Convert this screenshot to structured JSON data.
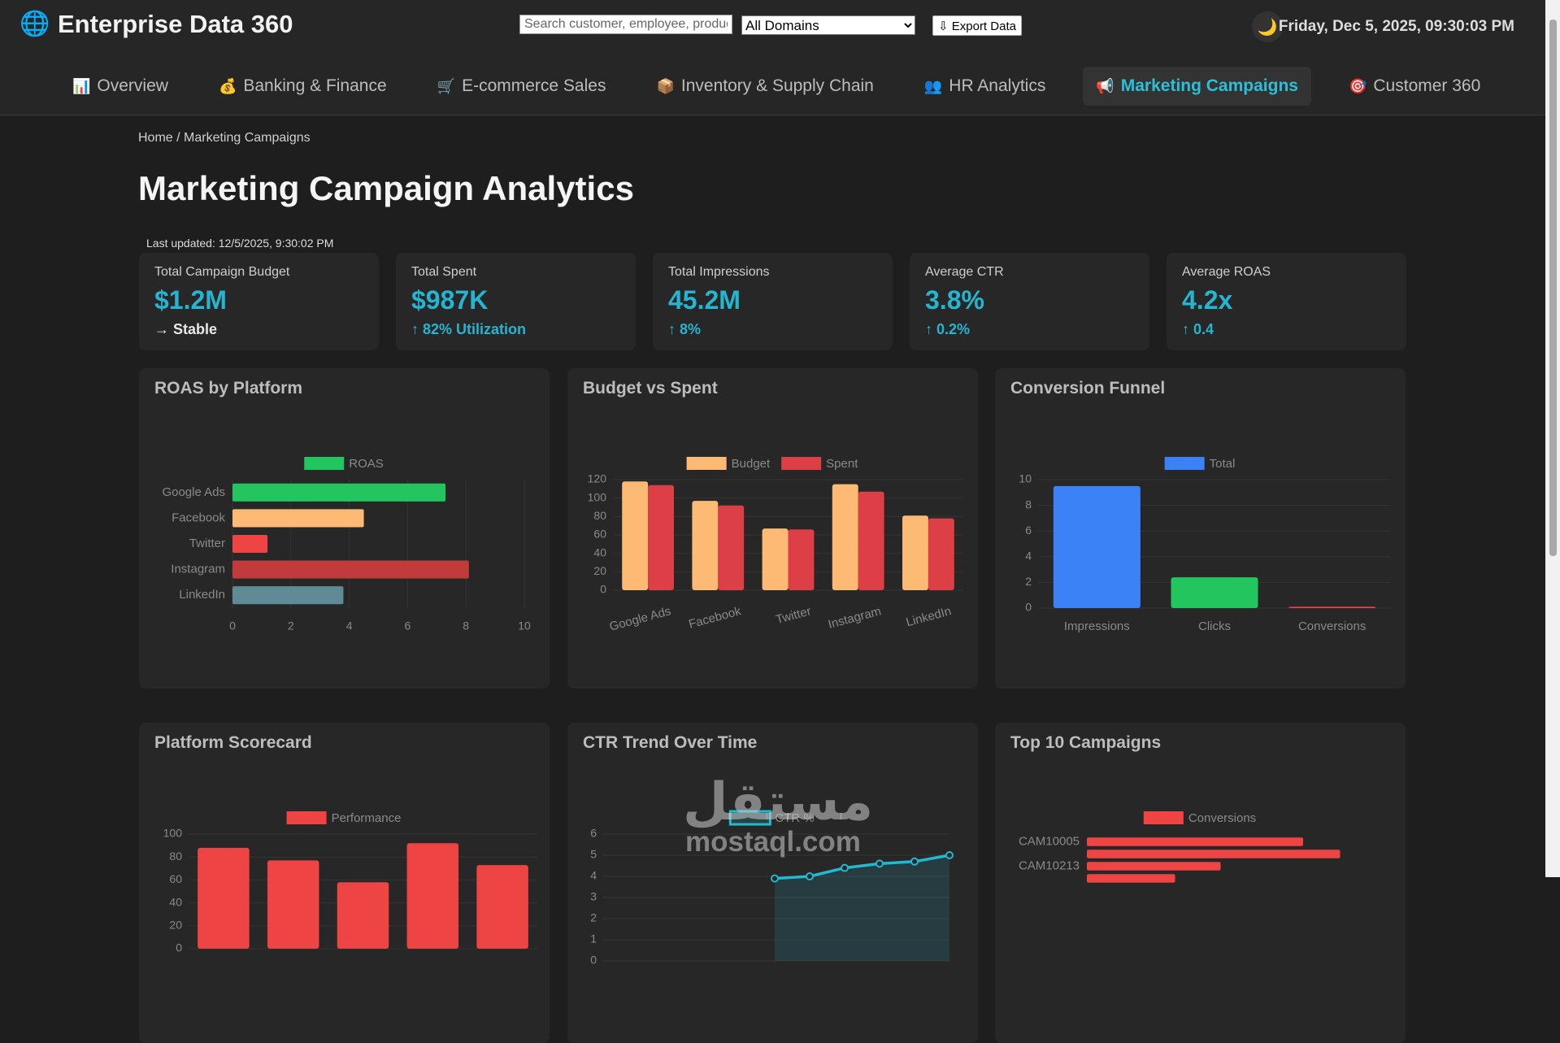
{
  "header": {
    "icon": "🌐",
    "title": "Enterprise Data 360",
    "search_placeholder": "Search customer, employee, product...",
    "domain_select": "All Domains",
    "export_button": "⇩ Export Data",
    "theme_icon": "🌙",
    "datetime": "Friday, Dec 5, 2025, 09:30:03 PM"
  },
  "nav": [
    {
      "icon": "📊",
      "label": "Overview"
    },
    {
      "icon": "💰",
      "label": "Banking & Finance"
    },
    {
      "icon": "🛒",
      "label": "E-commerce Sales"
    },
    {
      "icon": "📦",
      "label": "Inventory & Supply Chain"
    },
    {
      "icon": "👥",
      "label": "HR Analytics"
    },
    {
      "icon": "📢",
      "label": "Marketing Campaigns",
      "active": true
    },
    {
      "icon": "🎯",
      "label": "Customer 360"
    }
  ],
  "breadcrumb": "Home / Marketing Campaigns",
  "page_title": "Marketing Campaign Analytics",
  "last_updated": "Last updated: 12/5/2025, 9:30:02 PM",
  "kpis": [
    {
      "label": "Total Campaign Budget",
      "value": "$1.2M",
      "delta": "→ Stable",
      "trend": "flat"
    },
    {
      "label": "Total Spent",
      "value": "$987K",
      "delta": "↑ 82% Utilization",
      "trend": "up"
    },
    {
      "label": "Total Impressions",
      "value": "45.2M",
      "delta": "↑ 8%",
      "trend": "up"
    },
    {
      "label": "Average CTR",
      "value": "3.8%",
      "delta": "↑ 0.2%",
      "trend": "up"
    },
    {
      "label": "Average ROAS",
      "value": "4.2x",
      "delta": "↑ 0.4",
      "trend": "up"
    }
  ],
  "chart_data": [
    {
      "type": "bar",
      "orientation": "horizontal",
      "title": "ROAS by Platform",
      "categories": [
        "Google Ads",
        "Facebook",
        "Twitter",
        "Instagram",
        "LinkedIn"
      ],
      "series": [
        {
          "name": "ROAS",
          "color": "#22c55e",
          "colors": [
            "#22c55e",
            "#fdba74",
            "#ef4444",
            "#c13b3b",
            "#5f8a96"
          ],
          "values": [
            7.3,
            4.5,
            1.2,
            8.1,
            3.8
          ]
        }
      ],
      "xlim": [
        0,
        10
      ],
      "xticks": [
        0,
        2,
        4,
        6,
        8,
        10
      ],
      "grid": true
    },
    {
      "type": "bar",
      "title": "Budget vs Spent",
      "categories": [
        "Google Ads",
        "Facebook",
        "Twitter",
        "Instagram",
        "LinkedIn"
      ],
      "series": [
        {
          "name": "Budget",
          "color": "#fdba74",
          "values": [
            118,
            97,
            67,
            115,
            81
          ]
        },
        {
          "name": "Spent",
          "color": "#dc3f46",
          "values": [
            114,
            92,
            66,
            107,
            78
          ]
        }
      ],
      "ylim": [
        0,
        120
      ],
      "yticks": [
        0,
        20,
        40,
        60,
        80,
        100,
        120
      ],
      "grid": true,
      "rotate_labels": true
    },
    {
      "type": "bar",
      "title": "Conversion Funnel",
      "categories": [
        "Impressions",
        "Clicks",
        "Conversions"
      ],
      "series": [
        {
          "name": "Total",
          "color": "#3b82f6",
          "colors": [
            "#3b82f6",
            "#22c55e",
            "#ef4444"
          ],
          "values": [
            9.5,
            2.4,
            0.1
          ]
        }
      ],
      "ylim": [
        0,
        10
      ],
      "yticks": [
        0,
        2,
        4,
        6,
        8,
        10
      ],
      "grid": true
    },
    {
      "type": "bar",
      "title": "Platform Scorecard",
      "categories": [
        null,
        null,
        null,
        null,
        null
      ],
      "series": [
        {
          "name": "Performance",
          "color": "#ef4444",
          "values": [
            88,
            77,
            58,
            92,
            73
          ]
        }
      ],
      "ylim": [
        0,
        100
      ],
      "yticks": [
        0,
        20,
        40,
        60,
        80,
        100
      ],
      "grid": true
    },
    {
      "type": "line",
      "title": "CTR Trend Over Time",
      "categories": [
        null,
        null,
        null,
        null,
        null,
        null
      ],
      "series": [
        {
          "name": "CTR %",
          "color": "#22b8cf",
          "values": [
            3.9,
            4.0,
            4.4,
            4.6,
            4.7,
            5.0
          ]
        }
      ],
      "ylim": [
        0,
        6
      ],
      "yticks": [
        0,
        1,
        2,
        3,
        4,
        5,
        6
      ],
      "grid": true,
      "fill": true
    },
    {
      "type": "bar",
      "orientation": "horizontal",
      "title": "Top 10 Campaigns",
      "categories": [
        "CAM10005",
        null,
        "CAM10213",
        null
      ],
      "series": [
        {
          "name": "Conversions",
          "color": "#ef4444",
          "values": [
            380,
            445,
            235,
            155
          ]
        }
      ],
      "xlim": [
        0,
        500
      ],
      "grid": false
    }
  ],
  "watermark": {
    "arabic": "مستقل",
    "latin": "mostaql.com"
  }
}
